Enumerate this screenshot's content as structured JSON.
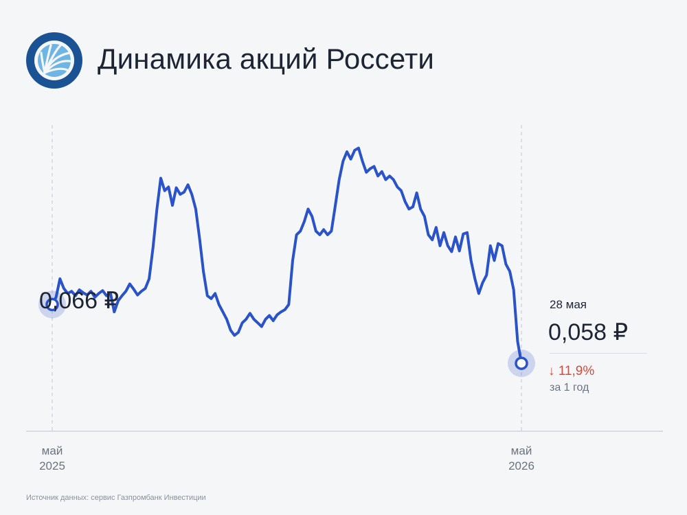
{
  "header": {
    "title": "Динамика акций Россети",
    "logo_icon": "rosseti-logo-icon"
  },
  "colors": {
    "line": "#2a52c9",
    "accent_dark": "#1b5293",
    "negative": "#d64a3c",
    "background": "#f5f6f8"
  },
  "annotations": {
    "start_value": "0,066 ₽",
    "end_date": "28 мая",
    "end_value": "0,058 ₽",
    "change": "↓ 11,9%",
    "change_period": "за 1 год"
  },
  "source": "Источник данных: сервис Газпромбанк Инвестиции",
  "chart_data": {
    "type": "line",
    "title": "Динамика акций Россети",
    "xlabel": "",
    "ylabel": "",
    "x_ticks": [
      {
        "month": "май",
        "year": "2025",
        "t": 0
      },
      {
        "month": "май",
        "year": "2026",
        "t": 1
      }
    ],
    "ylim": [
      0.0495,
      0.0925
    ],
    "grid": false,
    "series": [
      {
        "values": [
          0.066,
          0.067,
          0.0695,
          0.0682,
          0.0675,
          0.0678,
          0.0672,
          0.068,
          0.0676,
          0.0673,
          0.0678,
          0.067,
          0.0675,
          0.0679,
          0.0672,
          0.0676,
          0.065,
          0.0665,
          0.0672,
          0.0678,
          0.0688,
          0.0681,
          0.0673,
          0.0678,
          0.0682,
          0.0695,
          0.0738,
          0.079,
          0.0832,
          0.0815,
          0.082,
          0.0795,
          0.0819,
          0.081,
          0.0813,
          0.0823,
          0.081,
          0.079,
          0.075,
          0.0705,
          0.0672,
          0.0668,
          0.0675,
          0.066,
          0.065,
          0.064,
          0.0625,
          0.0618,
          0.0622,
          0.0635,
          0.064,
          0.0648,
          0.064,
          0.0635,
          0.063,
          0.064,
          0.0645,
          0.0638,
          0.0646,
          0.065,
          0.0653,
          0.066,
          0.072,
          0.0755,
          0.076,
          0.0773,
          0.079,
          0.078,
          0.076,
          0.0755,
          0.0762,
          0.0755,
          0.076,
          0.0795,
          0.083,
          0.0855,
          0.0868,
          0.0858,
          0.087,
          0.0873,
          0.0855,
          0.084,
          0.0845,
          0.0848,
          0.0835,
          0.0841,
          0.083,
          0.0835,
          0.083,
          0.082,
          0.0815,
          0.08,
          0.079,
          0.0793,
          0.0812,
          0.079,
          0.078,
          0.0755,
          0.0748,
          0.0765,
          0.074,
          0.0758,
          0.074,
          0.0732,
          0.0752,
          0.0733,
          0.0756,
          0.0758,
          0.072,
          0.0695,
          0.0675,
          0.069,
          0.07,
          0.074,
          0.072,
          0.0743,
          0.074,
          0.0715,
          0.0705,
          0.068,
          0.061,
          0.058
        ]
      }
    ]
  }
}
